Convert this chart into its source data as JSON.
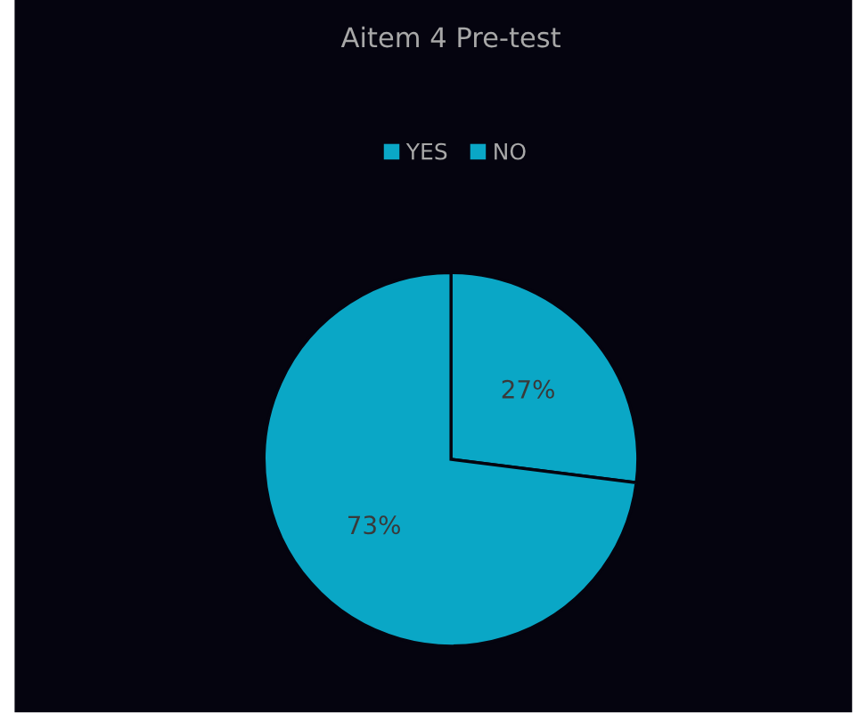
{
  "chart_data": {
    "type": "pie",
    "title": "Aitem 4 Pre-test",
    "categories": [
      "YES",
      "NO"
    ],
    "values": [
      27,
      73
    ],
    "colors": [
      "#0aa7c6",
      "#0aa7c6"
    ],
    "value_labels": [
      "27%",
      "73%"
    ],
    "legend": "top"
  }
}
